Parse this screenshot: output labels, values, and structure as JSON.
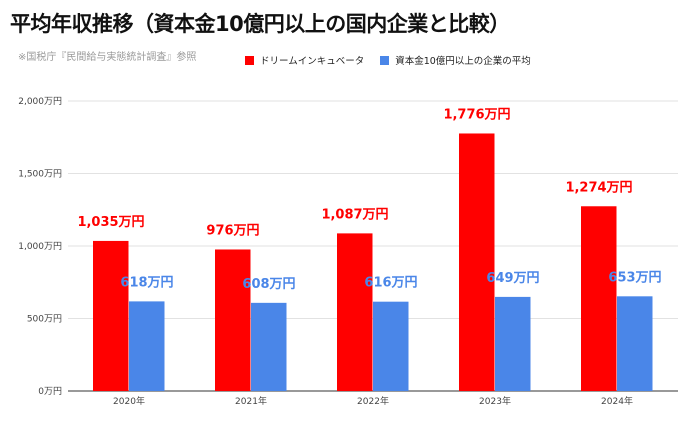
{
  "chart_data": {
    "type": "bar",
    "title": "平均年収推移（資本金10億円以上の国内企業と比較）",
    "subtitle": "※国税庁『民間給与実態統計調査』参照",
    "categories": [
      "2020年",
      "2021年",
      "2022年",
      "2023年",
      "2024年"
    ],
    "series": [
      {
        "name": "ドリームインキュベータ",
        "color": "#ff0000",
        "values": [
          1035,
          976,
          1087,
          1776,
          1274
        ],
        "data_labels": [
          "1,035万円",
          "976万円",
          "1,087万円",
          "1,776万円",
          "1,274万円"
        ]
      },
      {
        "name": "資本金10億円以上の企業の平均",
        "color": "#4a86e8",
        "values": [
          618,
          608,
          616,
          649,
          653
        ],
        "data_labels": [
          "618万円",
          "608万円",
          "616万円",
          "649万円",
          "653万円"
        ]
      }
    ],
    "ylim": [
      0,
      2000
    ],
    "yticks": [
      0,
      500,
      1000,
      1500,
      2000
    ],
    "ytick_labels": [
      "0万円",
      "500万円",
      "1,000万円",
      "1,500万円",
      "2,000万円"
    ],
    "xlabel": "",
    "ylabel": "",
    "grid": true,
    "legend_position": "top"
  }
}
